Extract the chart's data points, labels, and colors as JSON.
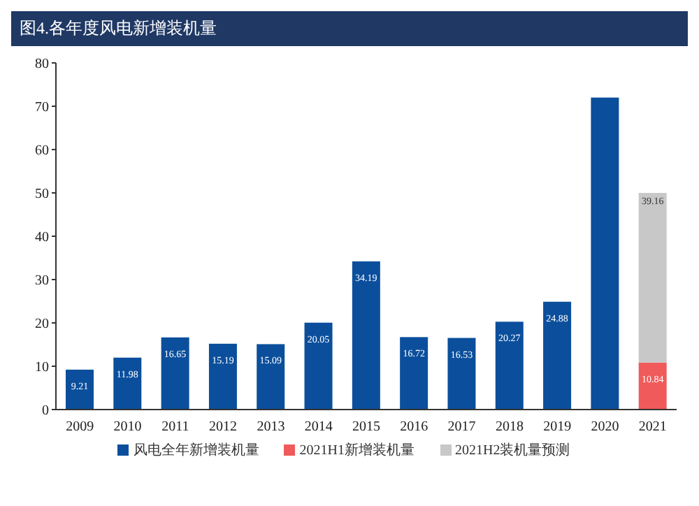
{
  "chart_data": {
    "type": "bar",
    "title": "图4.各年度风电新增装机量",
    "categories": [
      "2009",
      "2010",
      "2011",
      "2012",
      "2013",
      "2014",
      "2015",
      "2016",
      "2017",
      "2018",
      "2019",
      "2020",
      "2021"
    ],
    "stacked": true,
    "ylim": [
      0,
      80
    ],
    "yticks": [
      0,
      10,
      20,
      30,
      40,
      50,
      60,
      70,
      80
    ],
    "grid": false,
    "legend": "bottom",
    "series": [
      {
        "name": "风电全年新增装机量",
        "color": "#0b4f9c",
        "values": [
          9.21,
          11.98,
          16.65,
          15.19,
          15.09,
          20.05,
          34.19,
          16.72,
          16.53,
          20.27,
          24.88,
          72,
          null
        ],
        "value_labels": [
          "9.21",
          "11.98",
          "16.65",
          "15.19",
          "15.09",
          "20.05",
          "34.19",
          "16.72",
          "16.53",
          "20.27",
          "24.88",
          null,
          null
        ]
      },
      {
        "name": "2021H1新增装机量",
        "color": "#f05a5a",
        "values": [
          null,
          null,
          null,
          null,
          null,
          null,
          null,
          null,
          null,
          null,
          null,
          null,
          10.84
        ],
        "value_labels": [
          null,
          null,
          null,
          null,
          null,
          null,
          null,
          null,
          null,
          null,
          null,
          null,
          "10.84"
        ]
      },
      {
        "name": "2021H2装机量预测",
        "color": "#c8c8c8",
        "values": [
          null,
          null,
          null,
          null,
          null,
          null,
          null,
          null,
          null,
          null,
          null,
          null,
          39.16
        ],
        "value_labels": [
          null,
          null,
          null,
          null,
          null,
          null,
          null,
          null,
          null,
          null,
          null,
          null,
          "39.16"
        ]
      }
    ]
  }
}
